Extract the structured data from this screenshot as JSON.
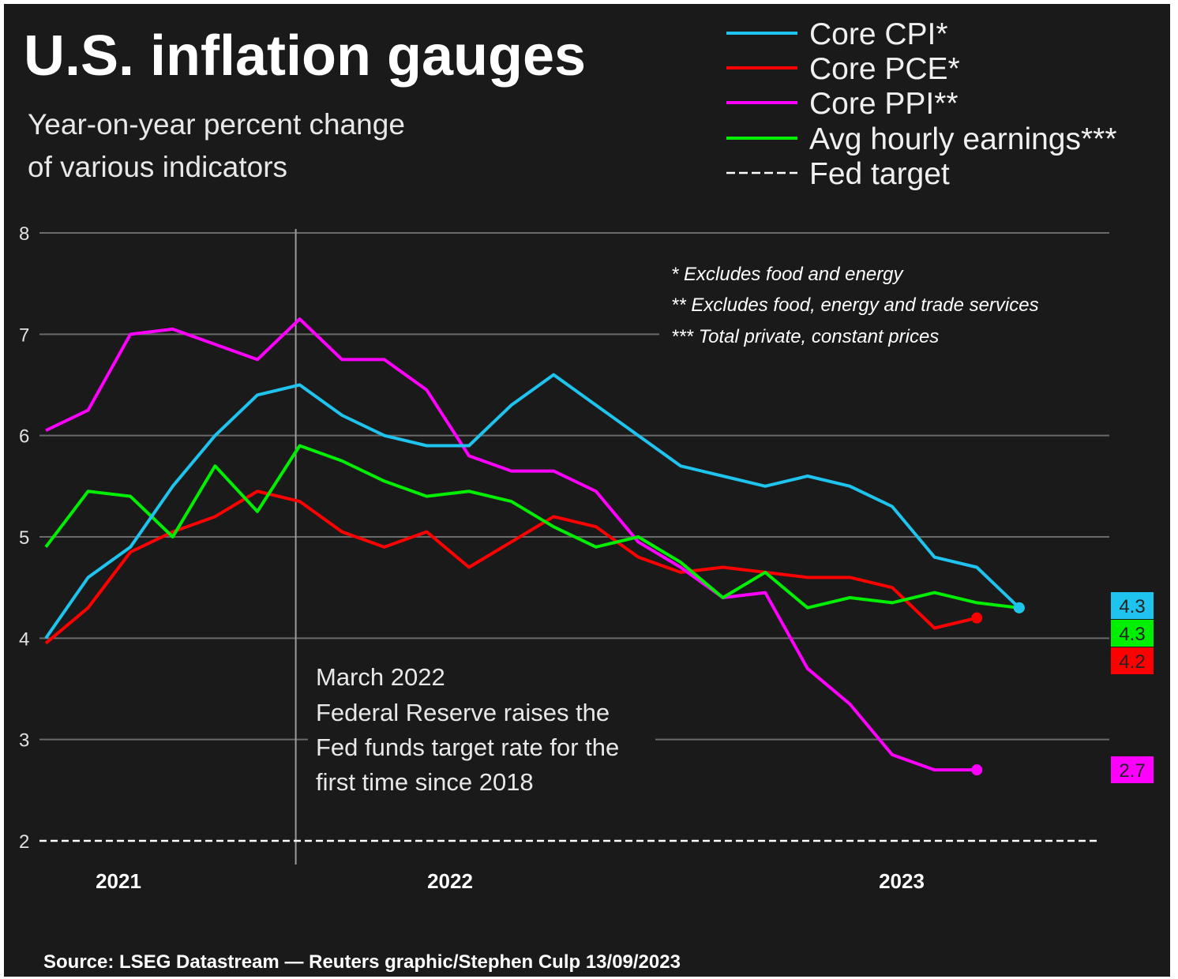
{
  "chart_data": {
    "type": "line",
    "title": "U.S. inflation gauges",
    "subtitle": [
      "Year-on-year percent change",
      "of various indicators"
    ],
    "x": [
      "2021-09",
      "2021-10",
      "2021-11",
      "2021-12",
      "2022-01",
      "2022-02",
      "2022-03",
      "2022-04",
      "2022-05",
      "2022-06",
      "2022-07",
      "2022-08",
      "2022-09",
      "2022-10",
      "2022-11",
      "2022-12",
      "2023-01",
      "2023-02",
      "2023-03",
      "2023-04",
      "2023-05",
      "2023-06",
      "2023-07",
      "2023-08"
    ],
    "x_tick_labels": [
      "2021",
      "2022",
      "2023"
    ],
    "y_ticks": [
      2,
      3,
      4,
      5,
      6,
      7,
      8
    ],
    "ylim": [
      2,
      8
    ],
    "grid": true,
    "legend_position": "top-right",
    "series": [
      {
        "name": "Core CPI*",
        "color": "#1ec3ee",
        "values": [
          4.0,
          4.6,
          4.9,
          5.5,
          6.0,
          6.4,
          6.5,
          6.2,
          6.0,
          5.9,
          5.9,
          6.3,
          6.6,
          6.3,
          6.0,
          5.7,
          5.6,
          5.5,
          5.6,
          5.5,
          5.3,
          4.8,
          4.7,
          4.3
        ],
        "end_label": "4.3"
      },
      {
        "name": "Core PCE*",
        "color": "#ff0000",
        "values": [
          3.95,
          4.3,
          4.85,
          5.05,
          5.2,
          5.45,
          5.35,
          5.05,
          4.9,
          5.05,
          4.7,
          4.95,
          5.2,
          5.1,
          4.8,
          4.65,
          4.7,
          4.65,
          4.6,
          4.6,
          4.5,
          4.1,
          4.2,
          null
        ],
        "end_label": "4.2"
      },
      {
        "name": "Core PPI**",
        "color": "#ff00ff",
        "values": [
          6.05,
          6.25,
          7.0,
          7.05,
          6.9,
          6.75,
          7.15,
          6.75,
          6.75,
          6.45,
          5.8,
          5.65,
          5.65,
          5.45,
          4.95,
          4.7,
          4.4,
          4.45,
          3.7,
          3.35,
          2.85,
          2.7,
          2.7,
          null
        ],
        "end_label": "2.7"
      },
      {
        "name": "Avg hourly earnings***",
        "color": "#00ee00",
        "values": [
          4.9,
          5.45,
          5.4,
          5.0,
          5.7,
          5.25,
          5.9,
          5.75,
          5.55,
          5.4,
          5.45,
          5.35,
          5.1,
          4.9,
          5.0,
          4.75,
          4.4,
          4.65,
          4.3,
          4.4,
          4.35,
          4.45,
          4.35,
          4.3
        ],
        "end_label": "4.3"
      },
      {
        "name": "Fed target",
        "color": "#ffffff",
        "style": "dashed",
        "value": 2
      }
    ],
    "annotation": {
      "x": "2022-03",
      "lines": [
        "March 2022",
        "Federal Reserve raises the",
        "Fed funds target rate for the",
        "first time since 2018"
      ]
    },
    "footnotes": [
      "* Excludes food and energy",
      "** Excludes food, energy and trade services",
      "*** Total private, constant prices"
    ],
    "source": "Source: LSEG Datastream — Reuters graphic/Stephen Culp 13/09/2023"
  }
}
